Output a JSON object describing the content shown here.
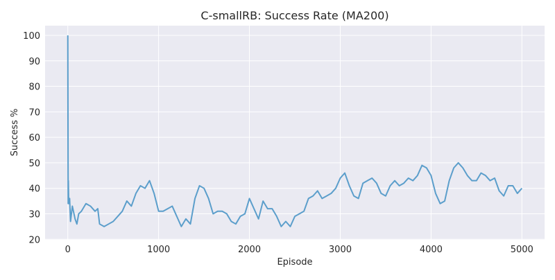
{
  "chart_data": {
    "type": "line",
    "title": "C-smallRB: Success Rate (MA200)",
    "x_label": "Episode",
    "y_label": "Success %",
    "color": "#5b9ecb",
    "grid": true,
    "xlim": [
      -250,
      5250
    ],
    "ylim": [
      19.8,
      103.8
    ],
    "xticks": [
      0,
      1000,
      2000,
      3000,
      4000,
      5000
    ],
    "yticks": [
      20,
      30,
      40,
      50,
      60,
      70,
      80,
      90,
      100
    ],
    "x": [
      0,
      2,
      4,
      6,
      10,
      20,
      30,
      50,
      80,
      100,
      120,
      150,
      200,
      250,
      300,
      330,
      350,
      400,
      450,
      500,
      550,
      600,
      650,
      700,
      750,
      800,
      850,
      900,
      950,
      1000,
      1050,
      1100,
      1150,
      1200,
      1250,
      1300,
      1350,
      1400,
      1450,
      1500,
      1550,
      1600,
      1650,
      1700,
      1750,
      1800,
      1850,
      1900,
      1950,
      2000,
      2050,
      2100,
      2150,
      2200,
      2250,
      2300,
      2350,
      2400,
      2450,
      2500,
      2550,
      2600,
      2650,
      2700,
      2750,
      2800,
      2850,
      2900,
      2950,
      3000,
      3050,
      3100,
      3150,
      3200,
      3250,
      3300,
      3350,
      3400,
      3450,
      3500,
      3550,
      3600,
      3650,
      3700,
      3750,
      3800,
      3850,
      3900,
      3950,
      4000,
      4050,
      4100,
      4150,
      4200,
      4250,
      4300,
      4350,
      4400,
      4450,
      4500,
      4550,
      4600,
      4650,
      4700,
      4750,
      4800,
      4850,
      4900,
      4950,
      5000
    ],
    "values": [
      100,
      67,
      34,
      43,
      34,
      36,
      27,
      33,
      28,
      26,
      30,
      31,
      34,
      33,
      31,
      32,
      26,
      25,
      26,
      27,
      29,
      31,
      35,
      33,
      38,
      41,
      40,
      43,
      38,
      31,
      31,
      32,
      33,
      29,
      25,
      28,
      26,
      36,
      41,
      40,
      36,
      30,
      31,
      31,
      30,
      27,
      26,
      29,
      30,
      36,
      32,
      28,
      35,
      32,
      32,
      29,
      25,
      27,
      25,
      29,
      30,
      31,
      36,
      37,
      39,
      36,
      37,
      38,
      40,
      44,
      46,
      41,
      37,
      36,
      42,
      43,
      44,
      42,
      38,
      37,
      41,
      43,
      41,
      42,
      44,
      43,
      45,
      49,
      48,
      45,
      38,
      34,
      35,
      43,
      48,
      50,
      48,
      45,
      43,
      43,
      46,
      45,
      43,
      44,
      39,
      37,
      41,
      41,
      38,
      40
    ]
  }
}
